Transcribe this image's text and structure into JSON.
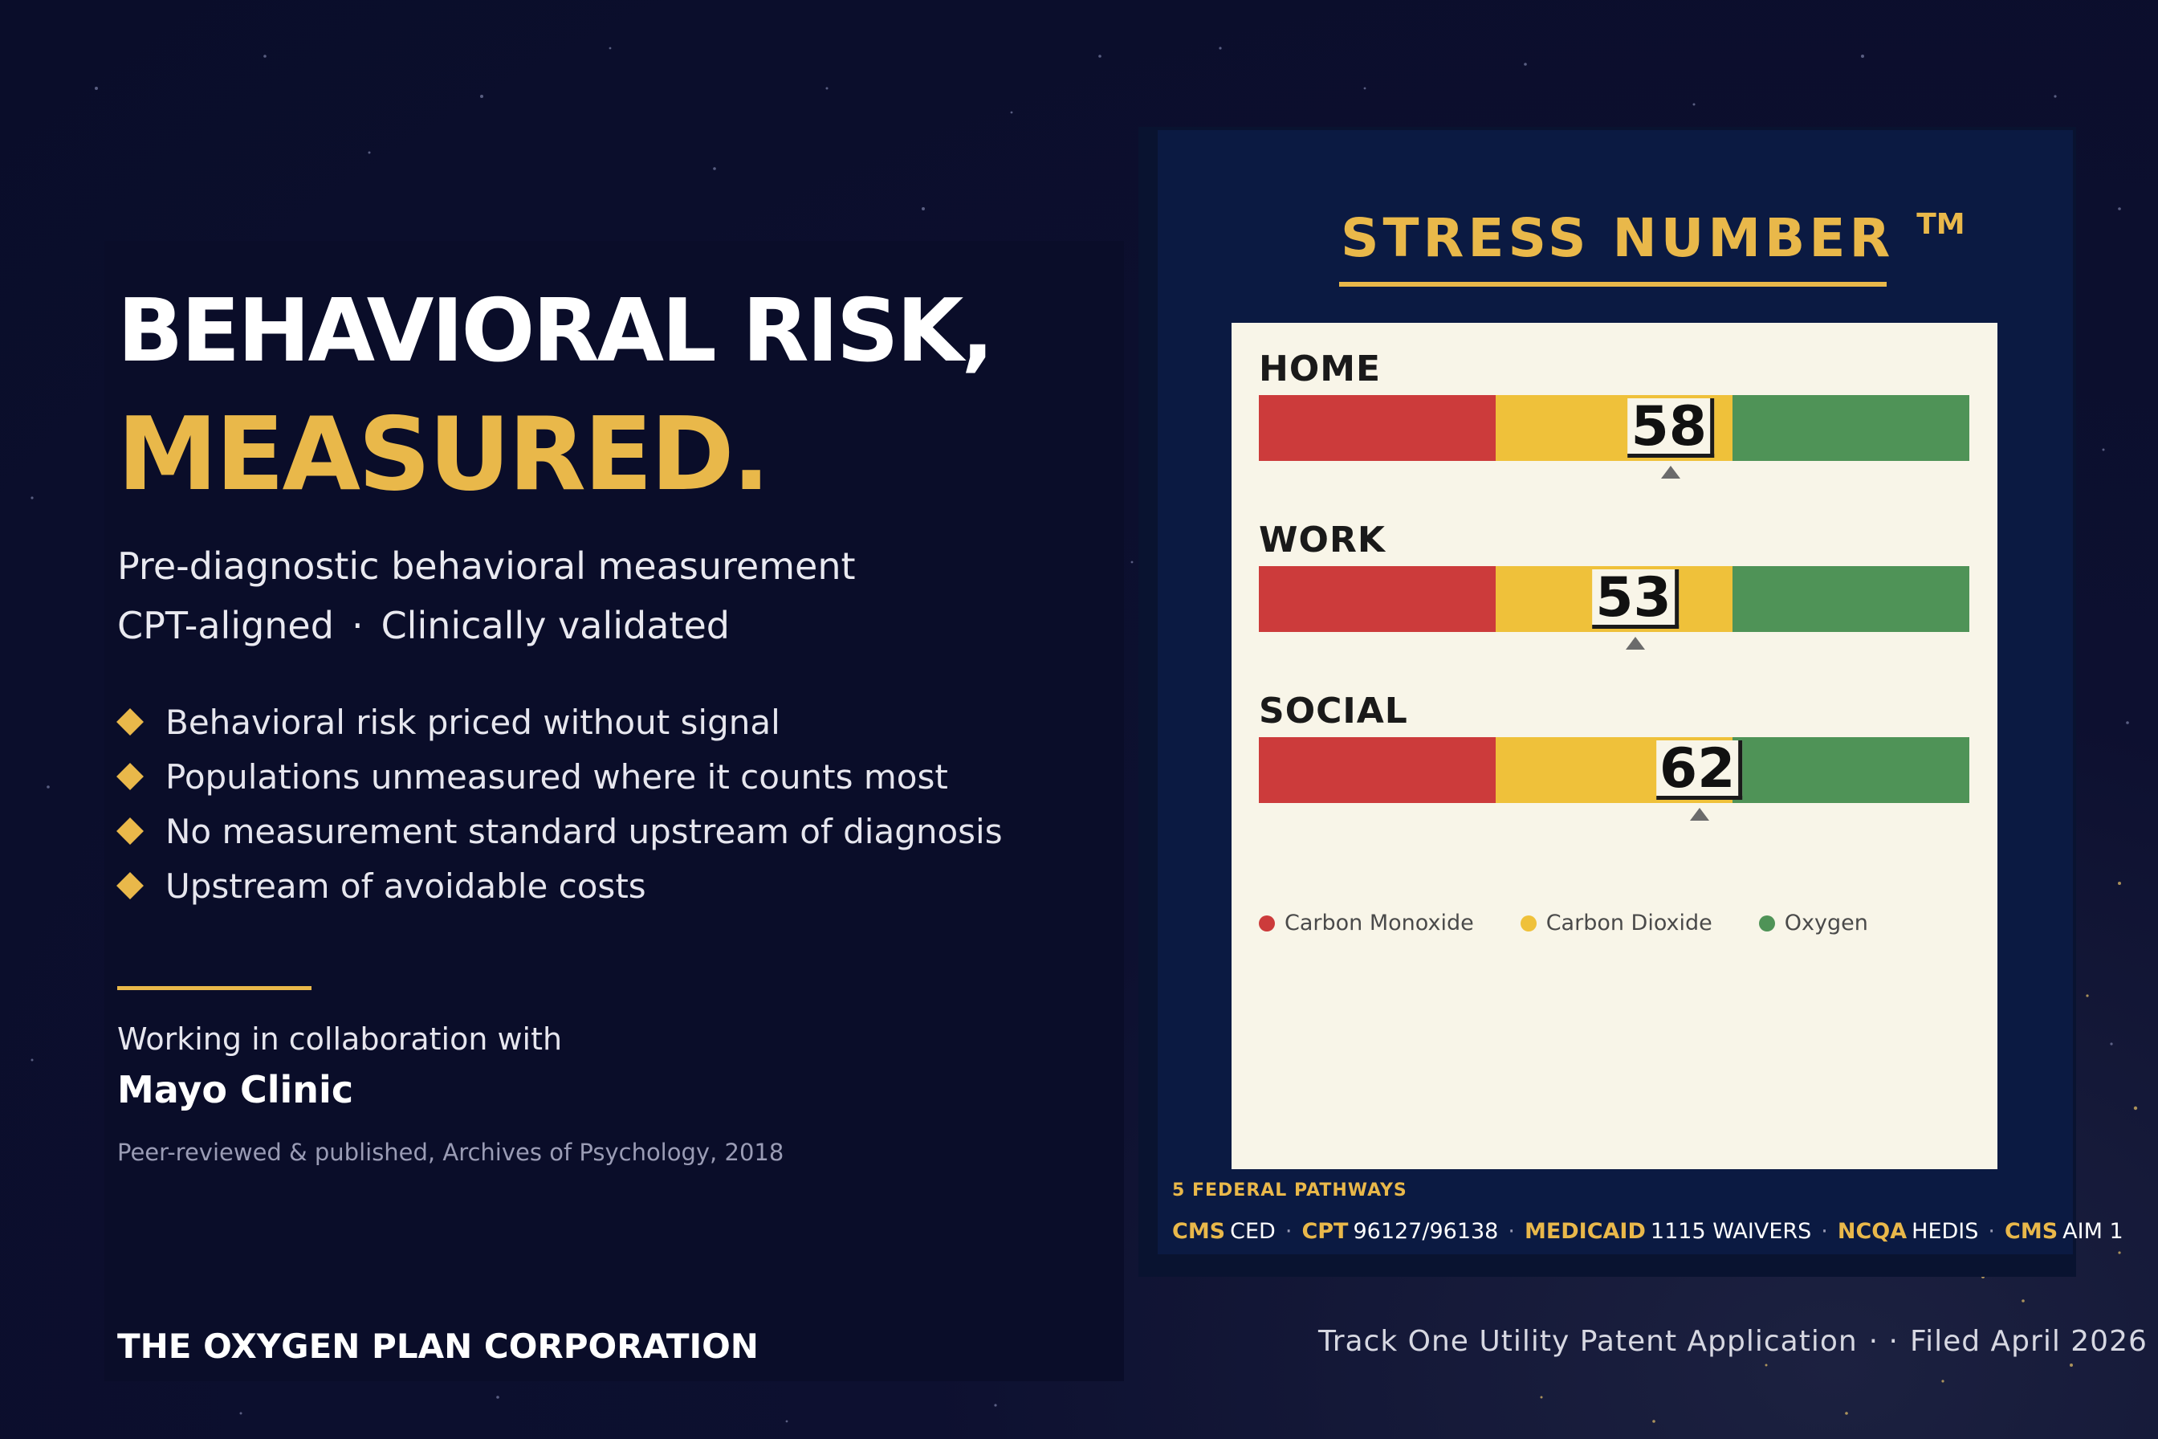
{
  "headline": {
    "line1": "BEHAVIORAL RISK,",
    "line2": "MEASURED."
  },
  "subtitle": {
    "line1": "Pre-diagnostic behavioral measurement",
    "line2_left": "CPT-aligned",
    "line2_sep": "·",
    "line2_right": "Clinically validated"
  },
  "bullets": [
    "Behavioral risk priced without signal",
    "Populations unmeasured where it counts most",
    "No measurement standard upstream of diagnosis",
    "Upstream of avoidable costs"
  ],
  "collaboration": {
    "intro": "Working in collaboration with",
    "partner": "Mayo Clinic",
    "citation": "Peer-reviewed & published, Archives of Psychology, 2018"
  },
  "company": "THE OXYGEN PLAN CORPORATION",
  "card": {
    "title": "STRESS NUMBER",
    "trademark": "TM",
    "scale_max": 100,
    "meters": [
      {
        "label": "HOME",
        "value": "58",
        "score": 58
      },
      {
        "label": "WORK",
        "value": "53",
        "score": 53
      },
      {
        "label": "SOCIAL",
        "value": "62",
        "score": 62
      }
    ],
    "legend": [
      {
        "label": "Carbon Monoxide",
        "color": "#cc3b3b"
      },
      {
        "label": "Carbon Dioxide",
        "color": "#efc13a"
      },
      {
        "label": "Oxygen",
        "color": "#4f9357"
      }
    ],
    "pathways_title": "5 FEDERAL PATHWAYS",
    "pathways": [
      {
        "key": "CMS",
        "value": "CED"
      },
      {
        "key": "CPT",
        "value": "96127/96138"
      },
      {
        "key": "MEDICAID",
        "value": "1115 WAIVERS"
      },
      {
        "key": "NCQA",
        "value": "HEDIS"
      },
      {
        "key": "CMS",
        "value": "AIM 1"
      }
    ],
    "pathway_sep": "·"
  },
  "filing": {
    "left": "Track One Utility Patent Application",
    "sep": "· ·",
    "right": "Filed April 2026"
  },
  "colors": {
    "accent": "#e9b84a",
    "background": "#0a0d2a",
    "panel": "#f8f5e8"
  }
}
